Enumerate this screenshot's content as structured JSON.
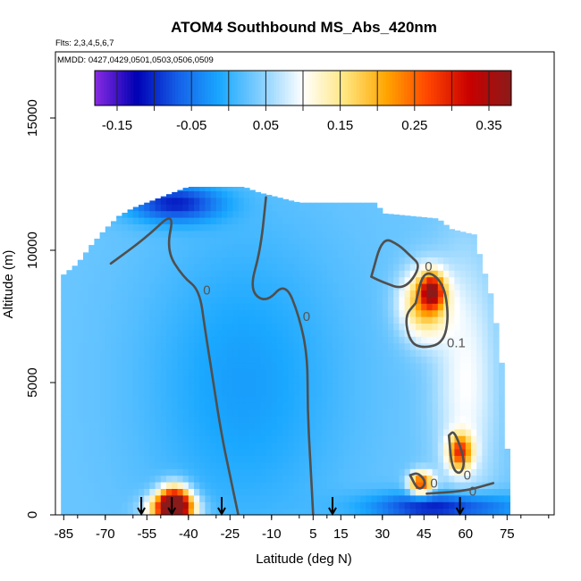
{
  "chart_data": {
    "type": "heatmap",
    "title": "ATOM4 Southbound MS_Abs_420nm",
    "flights_note": "Flts: 2,3,4,5,6,7",
    "dates_note": "MMDD: 0427,0429,0501,0503,0506,0509",
    "xlabel": "Latitude (deg N)",
    "ylabel": "Altitude (m)",
    "xlim": [
      -88,
      92
    ],
    "ylim": [
      0,
      17500
    ],
    "x_tick_values": [
      -85,
      -70,
      -55,
      -40,
      -25,
      -10,
      5,
      15,
      30,
      45,
      60,
      75
    ],
    "x_tick_labels": [
      "-85",
      "-70",
      "-55",
      "-40",
      "-25",
      "-10",
      "5",
      "15",
      "30",
      "45",
      "60",
      "75"
    ],
    "y_tick_values": [
      0,
      5000,
      10000,
      15000
    ],
    "y_tick_labels": [
      "0",
      "5000",
      "10000",
      "15000"
    ],
    "colorbar": {
      "range": [
        -0.18,
        0.38
      ],
      "tick_values": [
        -0.15,
        -0.05,
        0.05,
        0.15,
        0.25,
        0.35
      ],
      "tick_labels": [
        "-0.15",
        "-0.05",
        "0.05",
        "0.15",
        "0.25",
        "0.35"
      ],
      "colors": [
        "#8a2be2",
        "#0000b4",
        "#1560e8",
        "#1aa8ff",
        "#86d0ff",
        "#ffffff",
        "#ffe680",
        "#ffa500",
        "#ff4500",
        "#c80000",
        "#8b1a1a"
      ]
    },
    "background_value": 0.03,
    "data_region": [
      {
        "lat": -86,
        "top": 9000
      },
      {
        "lat": -80,
        "top": 9500
      },
      {
        "lat": -75,
        "top": 10200
      },
      {
        "lat": -70,
        "top": 10800
      },
      {
        "lat": -65,
        "top": 11300
      },
      {
        "lat": -60,
        "top": 11600
      },
      {
        "lat": -55,
        "top": 11800
      },
      {
        "lat": -50,
        "top": 12000
      },
      {
        "lat": -40,
        "top": 12400
      },
      {
        "lat": -20,
        "top": 12400
      },
      {
        "lat": -15,
        "top": 12200
      },
      {
        "lat": 0,
        "top": 11800
      },
      {
        "lat": 10,
        "top": 11800
      },
      {
        "lat": 20,
        "top": 11800
      },
      {
        "lat": 28,
        "top": 11800
      },
      {
        "lat": 30,
        "top": 11400
      },
      {
        "lat": 50,
        "top": 11200
      },
      {
        "lat": 55,
        "top": 10800
      },
      {
        "lat": 63,
        "top": 10600
      },
      {
        "lat": 70,
        "top": 8000
      },
      {
        "lat": 74,
        "top": 5000
      },
      {
        "lat": 76,
        "top": 0
      }
    ],
    "features": [
      {
        "lat": -45,
        "alt": 500,
        "value": 0.33,
        "sx": 4,
        "sy": 450
      },
      {
        "lat": -46,
        "alt": 200,
        "value": 0.28,
        "sx": 6,
        "sy": 400
      },
      {
        "lat": 45,
        "alt": 8000,
        "value": 0.2,
        "sx": 6,
        "sy": 900
      },
      {
        "lat": 48,
        "alt": 8500,
        "value": 0.26,
        "sx": 3,
        "sy": 450
      },
      {
        "lat": 58,
        "alt": 2400,
        "value": 0.25,
        "sx": 3,
        "sy": 450
      },
      {
        "lat": 44,
        "alt": 1200,
        "value": 0.28,
        "sx": 3,
        "sy": 300
      },
      {
        "lat": -45,
        "alt": 11800,
        "value": -0.1,
        "sx": 12,
        "sy": 500
      },
      {
        "lat": 52,
        "alt": 300,
        "value": -0.12,
        "sx": 18,
        "sy": 400
      },
      {
        "lat": -20,
        "alt": 5000,
        "value": -0.02,
        "sx": 25,
        "sy": 4000
      },
      {
        "lat": 60,
        "alt": 5000,
        "value": 0.1,
        "sx": 8,
        "sy": 3500
      }
    ],
    "contours": [
      {
        "label": "0",
        "points": [
          [
            -68,
            9500
          ],
          [
            -55,
            10500
          ],
          [
            -45,
            11500
          ],
          [
            -48,
            10000
          ],
          [
            -42,
            9000
          ],
          [
            -36,
            8500
          ],
          [
            -34,
            7000
          ],
          [
            -31,
            5000
          ],
          [
            -28,
            3000
          ],
          [
            -25,
            1500
          ],
          [
            -22,
            0
          ]
        ]
      },
      {
        "label": "0",
        "points": [
          [
            -12,
            12000
          ],
          [
            -14,
            10000
          ],
          [
            -18,
            8500
          ],
          [
            -12,
            8000
          ],
          [
            -5,
            8800
          ],
          [
            0,
            7500
          ],
          [
            3,
            6000
          ],
          [
            3,
            4000
          ],
          [
            4,
            2000
          ],
          [
            5,
            0
          ]
        ]
      },
      {
        "label": "0.1",
        "points": [
          [
            42,
            8000
          ],
          [
            38,
            7500
          ],
          [
            40,
            6500
          ],
          [
            45,
            6300
          ],
          [
            52,
            6500
          ],
          [
            54,
            7500
          ],
          [
            52,
            8800
          ],
          [
            45,
            9300
          ],
          [
            42,
            8000
          ]
        ]
      },
      {
        "label": "0",
        "points": [
          [
            26,
            9000
          ],
          [
            30,
            10500
          ],
          [
            36,
            10200
          ],
          [
            40,
            9800
          ],
          [
            44,
            9400
          ],
          [
            38,
            8500
          ],
          [
            30,
            8800
          ],
          [
            26,
            9000
          ]
        ]
      },
      {
        "label": "0",
        "points": [
          [
            54,
            3000
          ],
          [
            56,
            3200
          ],
          [
            60,
            2000
          ],
          [
            58,
            1500
          ],
          [
            55,
            1800
          ],
          [
            54,
            3000
          ]
        ]
      },
      {
        "label": "0",
        "points": [
          [
            40,
            1500
          ],
          [
            43,
            1600
          ],
          [
            46,
            1200
          ],
          [
            43,
            900
          ],
          [
            40,
            1500
          ]
        ]
      },
      {
        "label": "0",
        "points": [
          [
            46,
            800
          ],
          [
            60,
            900
          ],
          [
            70,
            1200
          ]
        ]
      }
    ],
    "flight_markers_lat": [
      -57,
      -46,
      -28,
      12,
      58
    ]
  }
}
